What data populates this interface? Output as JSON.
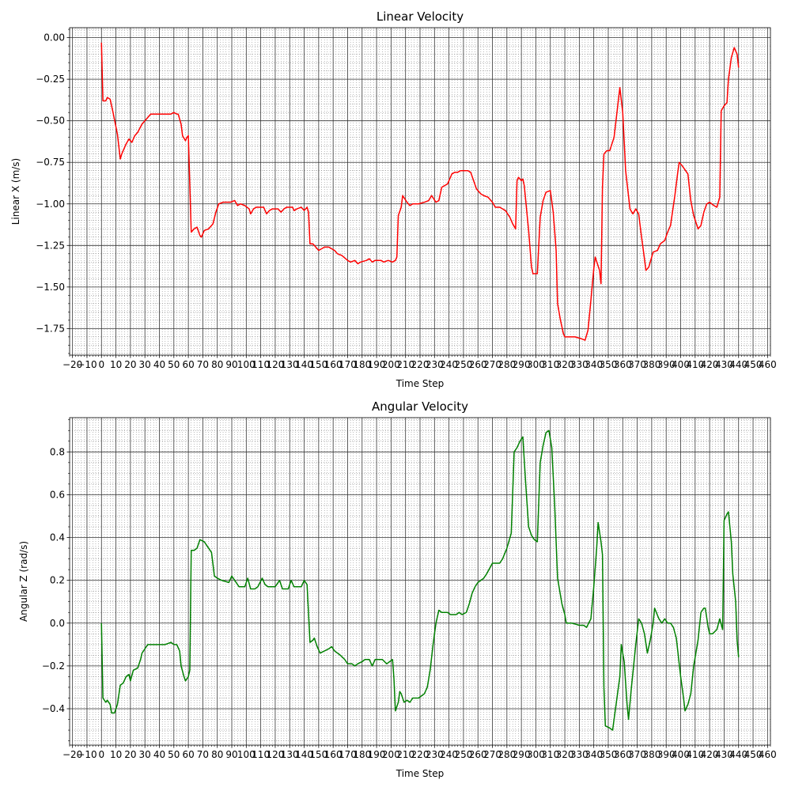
{
  "chart_data": [
    {
      "type": "line",
      "title": "Linear Velocity",
      "xlabel": "Time Step",
      "ylabel": "Linear X (m/s)",
      "color": "#ff0000",
      "xlim": [
        -22,
        462
      ],
      "ylim": [
        -1.91,
        0.06
      ],
      "grid": true,
      "minor_grid": true,
      "x_minor_divisions": 5,
      "y_minor_divisions": 5,
      "xticks": [
        {
          "value": -20,
          "label": "−20"
        },
        {
          "value": -10,
          "label": "−10"
        },
        0,
        10,
        20,
        30,
        40,
        50,
        60,
        70,
        80,
        90,
        100,
        110,
        120,
        130,
        140,
        150,
        160,
        170,
        180,
        190,
        200,
        210,
        220,
        230,
        240,
        250,
        260,
        270,
        280,
        290,
        300,
        310,
        320,
        330,
        340,
        350,
        360,
        370,
        380,
        390,
        400,
        410,
        420,
        430,
        440,
        450,
        460
      ],
      "yticks": [
        {
          "value": -1.75,
          "label": "−1.75"
        },
        {
          "value": -1.5,
          "label": "−1.50"
        },
        {
          "value": -1.25,
          "label": "−1.25"
        },
        {
          "value": -1,
          "label": "−1.00"
        },
        {
          "value": -0.75,
          "label": "−0.75"
        },
        {
          "value": -0.5,
          "label": "−0.50"
        },
        {
          "value": -0.25,
          "label": "−0.25"
        },
        {
          "value": 0,
          "label": "0.00"
        }
      ],
      "x": [
        0,
        1,
        3,
        4,
        6,
        8,
        11,
        13,
        14,
        17,
        19,
        21,
        23,
        25,
        28,
        31,
        33,
        34,
        38,
        42,
        47,
        48,
        50,
        52,
        53,
        55,
        56,
        58,
        59,
        60,
        62,
        64,
        66,
        68,
        69,
        71,
        74,
        77,
        79,
        81,
        84,
        89,
        92,
        94,
        96,
        99,
        102,
        103,
        105,
        107,
        112,
        114,
        116,
        118,
        122,
        124,
        126,
        128,
        132,
        133,
        135,
        138,
        140,
        142,
        143,
        144,
        146,
        147,
        150,
        152,
        154,
        157,
        161,
        163,
        166,
        170,
        172,
        175,
        177,
        179,
        183,
        185,
        187,
        189,
        193,
        195,
        198,
        201,
        203,
        204,
        205,
        207,
        208,
        211,
        213,
        215,
        219,
        223,
        226,
        228,
        231,
        233,
        235,
        237,
        239,
        242,
        244,
        246,
        248,
        253,
        255,
        257,
        259,
        262,
        264,
        267,
        270,
        272,
        275,
        279,
        282,
        284,
        286,
        287,
        288,
        290,
        291,
        292,
        295,
        297,
        298,
        301,
        303,
        305,
        307,
        310,
        312,
        314,
        315,
        317,
        319,
        320,
        327,
        331,
        334,
        336,
        338,
        340,
        341,
        344,
        345,
        346,
        347,
        349,
        351,
        354,
        356,
        358,
        360,
        362,
        365,
        367,
        369,
        371,
        373,
        375,
        376,
        378,
        381,
        384,
        386,
        389,
        391,
        393,
        396,
        398,
        399,
        401,
        405,
        407,
        409,
        412,
        414,
        416,
        418,
        420,
        423,
        425,
        427,
        428,
        430,
        432,
        433,
        435,
        437,
        439,
        440
      ],
      "values": [
        -0.03,
        -0.38,
        -0.38,
        -0.36,
        -0.37,
        -0.45,
        -0.58,
        -0.73,
        -0.7,
        -0.64,
        -0.61,
        -0.63,
        -0.59,
        -0.57,
        -0.52,
        -0.49,
        -0.47,
        -0.46,
        -0.46,
        -0.46,
        -0.46,
        -0.46,
        -0.45,
        -0.46,
        -0.46,
        -0.52,
        -0.59,
        -0.62,
        -0.6,
        -0.59,
        -1.17,
        -1.15,
        -1.14,
        -1.19,
        -1.2,
        -1.16,
        -1.15,
        -1.12,
        -1.05,
        -1.0,
        -0.99,
        -0.99,
        -0.98,
        -1.01,
        -1.0,
        -1.01,
        -1.03,
        -1.06,
        -1.03,
        -1.02,
        -1.02,
        -1.06,
        -1.04,
        -1.03,
        -1.03,
        -1.05,
        -1.03,
        -1.02,
        -1.02,
        -1.04,
        -1.03,
        -1.02,
        -1.04,
        -1.02,
        -1.05,
        -1.24,
        -1.24,
        -1.25,
        -1.28,
        -1.27,
        -1.26,
        -1.26,
        -1.28,
        -1.3,
        -1.31,
        -1.34,
        -1.35,
        -1.34,
        -1.36,
        -1.35,
        -1.34,
        -1.33,
        -1.35,
        -1.34,
        -1.34,
        -1.35,
        -1.34,
        -1.35,
        -1.34,
        -1.32,
        -1.07,
        -1.02,
        -0.95,
        -0.99,
        -1.01,
        -1.0,
        -1.0,
        -0.99,
        -0.98,
        -0.95,
        -0.99,
        -0.98,
        -0.9,
        -0.89,
        -0.88,
        -0.82,
        -0.81,
        -0.81,
        -0.8,
        -0.8,
        -0.81,
        -0.86,
        -0.91,
        -0.94,
        -0.95,
        -0.96,
        -0.99,
        -1.02,
        -1.02,
        -1.04,
        -1.08,
        -1.12,
        -1.15,
        -0.86,
        -0.84,
        -0.86,
        -0.85,
        -0.89,
        -1.16,
        -1.38,
        -1.42,
        -1.42,
        -1.08,
        -0.98,
        -0.93,
        -0.92,
        -1.05,
        -1.28,
        -1.6,
        -1.7,
        -1.78,
        -1.8,
        -1.8,
        -1.81,
        -1.82,
        -1.76,
        -1.58,
        -1.39,
        -1.32,
        -1.4,
        -1.48,
        -0.9,
        -0.7,
        -0.68,
        -0.68,
        -0.6,
        -0.45,
        -0.3,
        -0.45,
        -0.8,
        -1.03,
        -1.06,
        -1.03,
        -1.06,
        -1.2,
        -1.33,
        -1.4,
        -1.38,
        -1.29,
        -1.28,
        -1.24,
        -1.22,
        -1.17,
        -1.13,
        -0.95,
        -0.81,
        -0.75,
        -0.77,
        -0.82,
        -0.98,
        -1.07,
        -1.15,
        -1.13,
        -1.05,
        -1.0,
        -0.99,
        -1.01,
        -1.02,
        -0.96,
        -0.44,
        -0.41,
        -0.39,
        -0.25,
        -0.12,
        -0.06,
        -0.1,
        -0.18
      ]
    },
    {
      "type": "line",
      "title": "Angular Velocity",
      "xlabel": "Time Step",
      "ylabel": "Angular Z (rad/s)",
      "color": "#008000",
      "xlim": [
        -22,
        462
      ],
      "ylim": [
        -0.57,
        0.96
      ],
      "grid": true,
      "minor_grid": true,
      "x_minor_divisions": 5,
      "y_minor_divisions": 4,
      "xticks": [
        {
          "value": -20,
          "label": "−20"
        },
        {
          "value": -10,
          "label": "−10"
        },
        0,
        10,
        20,
        30,
        40,
        50,
        60,
        70,
        80,
        90,
        100,
        110,
        120,
        130,
        140,
        150,
        160,
        170,
        180,
        190,
        200,
        210,
        220,
        230,
        240,
        250,
        260,
        270,
        280,
        290,
        300,
        310,
        320,
        330,
        340,
        350,
        360,
        370,
        380,
        390,
        400,
        410,
        420,
        430,
        440,
        450,
        460
      ],
      "yticks": [
        {
          "value": -0.4,
          "label": "−0.4"
        },
        {
          "value": -0.2,
          "label": "−0.2"
        },
        {
          "value": 0,
          "label": "0.0"
        },
        0.2,
        0.4,
        0.6,
        0.8
      ],
      "x": [
        0,
        1,
        3,
        4,
        6,
        7,
        9,
        11,
        13,
        15,
        17,
        19,
        20,
        22,
        25,
        27,
        28,
        30,
        32,
        35,
        44,
        48,
        50,
        52,
        54,
        55,
        57,
        58,
        60,
        61,
        62,
        64,
        66,
        68,
        71,
        73,
        76,
        78,
        80,
        83,
        88,
        90,
        93,
        95,
        99,
        101,
        103,
        106,
        108,
        111,
        113,
        115,
        120,
        123,
        125,
        129,
        131,
        133,
        138,
        140,
        142,
        144,
        146,
        147,
        149,
        151,
        154,
        157,
        159,
        161,
        165,
        168,
        170,
        173,
        175,
        177,
        180,
        182,
        185,
        187,
        189,
        194,
        197,
        199,
        201,
        202,
        203,
        205,
        206,
        207,
        209,
        211,
        213,
        215,
        219,
        221,
        223,
        225,
        227,
        229,
        231,
        233,
        235,
        239,
        241,
        243,
        245,
        247,
        249,
        252,
        254,
        256,
        258,
        260,
        264,
        266,
        270,
        275,
        277,
        280,
        283,
        285,
        287,
        289,
        291,
        293,
        295,
        297,
        299,
        301,
        303,
        305,
        307,
        309,
        311,
        313,
        315,
        318,
        320,
        321,
        325,
        330,
        333,
        335,
        338,
        340,
        342,
        343,
        345,
        346,
        347,
        348,
        351,
        353,
        356,
        358,
        359,
        361,
        363,
        364,
        366,
        369,
        371,
        373,
        375,
        377,
        379,
        381,
        382,
        385,
        387,
        389,
        391,
        393,
        395,
        397,
        400,
        402,
        403,
        405,
        407,
        409,
        412,
        414,
        416,
        417,
        419,
        420,
        422,
        425,
        427,
        429,
        430,
        432,
        433,
        435,
        436,
        438,
        439,
        440
      ],
      "values": [
        0.0,
        -0.35,
        -0.37,
        -0.36,
        -0.38,
        -0.42,
        -0.42,
        -0.38,
        -0.29,
        -0.28,
        -0.25,
        -0.24,
        -0.27,
        -0.22,
        -0.21,
        -0.17,
        -0.14,
        -0.12,
        -0.1,
        -0.1,
        -0.1,
        -0.09,
        -0.1,
        -0.1,
        -0.13,
        -0.2,
        -0.25,
        -0.27,
        -0.25,
        -0.22,
        0.34,
        0.34,
        0.35,
        0.39,
        0.38,
        0.36,
        0.33,
        0.22,
        0.21,
        0.2,
        0.19,
        0.22,
        0.19,
        0.17,
        0.17,
        0.21,
        0.16,
        0.16,
        0.17,
        0.21,
        0.18,
        0.17,
        0.17,
        0.2,
        0.16,
        0.16,
        0.2,
        0.17,
        0.17,
        0.2,
        0.18,
        -0.09,
        -0.08,
        -0.07,
        -0.11,
        -0.14,
        -0.13,
        -0.12,
        -0.11,
        -0.13,
        -0.15,
        -0.17,
        -0.19,
        -0.19,
        -0.2,
        -0.19,
        -0.18,
        -0.17,
        -0.17,
        -0.2,
        -0.17,
        -0.17,
        -0.19,
        -0.18,
        -0.17,
        -0.26,
        -0.41,
        -0.37,
        -0.32,
        -0.33,
        -0.37,
        -0.36,
        -0.37,
        -0.35,
        -0.35,
        -0.34,
        -0.33,
        -0.3,
        -0.22,
        -0.1,
        0.0,
        0.06,
        0.05,
        0.05,
        0.04,
        0.04,
        0.04,
        0.05,
        0.04,
        0.05,
        0.09,
        0.14,
        0.17,
        0.19,
        0.21,
        0.23,
        0.28,
        0.28,
        0.3,
        0.35,
        0.42,
        0.8,
        0.82,
        0.85,
        0.87,
        0.65,
        0.45,
        0.41,
        0.39,
        0.38,
        0.75,
        0.83,
        0.89,
        0.9,
        0.82,
        0.55,
        0.21,
        0.09,
        0.04,
        0.0,
        0.0,
        -0.01,
        -0.01,
        -0.02,
        0.02,
        0.17,
        0.35,
        0.47,
        0.38,
        0.32,
        -0.3,
        -0.48,
        -0.49,
        -0.5,
        -0.35,
        -0.25,
        -0.1,
        -0.18,
        -0.38,
        -0.45,
        -0.3,
        -0.1,
        0.02,
        0.0,
        -0.05,
        -0.14,
        -0.08,
        0.0,
        0.07,
        0.02,
        0.0,
        0.02,
        0.0,
        0.0,
        -0.02,
        -0.07,
        -0.25,
        -0.35,
        -0.41,
        -0.38,
        -0.33,
        -0.2,
        -0.08,
        0.05,
        0.07,
        0.07,
        -0.02,
        -0.05,
        -0.05,
        -0.03,
        0.02,
        -0.03,
        0.48,
        0.51,
        0.52,
        0.38,
        0.23,
        0.1,
        -0.08,
        -0.16
      ]
    }
  ]
}
